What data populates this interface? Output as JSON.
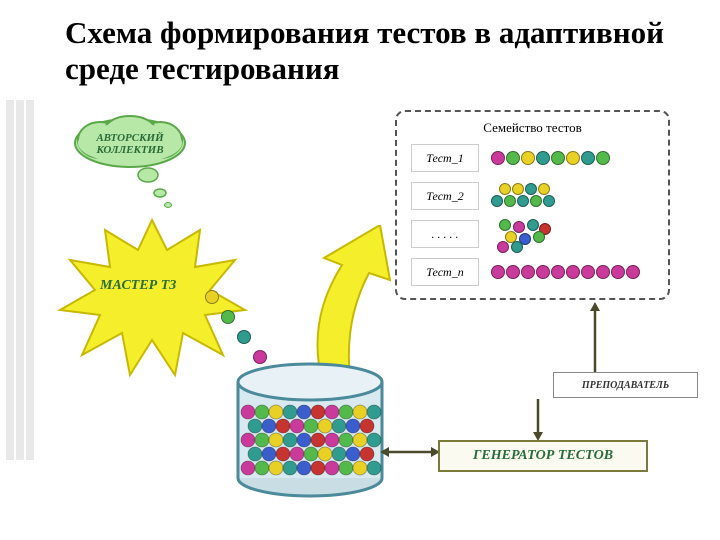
{
  "title": "Схема формирования тестов в адаптивной среде тестирования",
  "cloud_label": "АВТОРСКИЙ КОЛЛЕКТИВ",
  "star_label": "МАСТЕР ТЗ",
  "generator_label": "ГЕНЕРАТОР ТЕСТОВ",
  "teacher_label": "ПРЕПОДАВАТЕЛЬ",
  "family": {
    "title": "Семейство тестов",
    "rows": [
      {
        "label": "Тест_1",
        "balls": [
          "#c93a9a",
          "#54b94b",
          "#e8d024",
          "#2f9c8f",
          "#54b94b",
          "#e8d024",
          "#2f9c8f",
          "#54b94b"
        ]
      },
      {
        "label": "Тест_2",
        "balls_top": [
          "#e8d024",
          "#e8d024",
          "#2f9c8f",
          "#e8d024"
        ],
        "balls_bot": [
          "#2f9c8f",
          "#54b94b",
          "#2f9c8f",
          "#54b94b",
          "#2f9c8f"
        ]
      },
      {
        "label": ". . . . .",
        "cluster": [
          "#54b94b",
          "#c93a9a",
          "#2f9c8f",
          "#c7332f",
          "#e8d024",
          "#3a5ecc",
          "#54b94b",
          "#c93a9a",
          "#2f9c8f"
        ]
      },
      {
        "label": "Тест_n",
        "balls": [
          "#c93a9a",
          "#c93a9a",
          "#c93a9a",
          "#c93a9a",
          "#c93a9a",
          "#c93a9a",
          "#c93a9a",
          "#c93a9a",
          "#c93a9a",
          "#c93a9a"
        ]
      }
    ]
  },
  "colors": {
    "star_fill": "#f4ef2a",
    "star_stroke": "#c7b800",
    "cloud_fill": "#b8e8a8",
    "cloud_stroke": "#5aa84a",
    "cyl_stroke": "#4a8a9a",
    "cyl_fill": "#d8eaf0",
    "arrow_fill": "#f4ef2a",
    "green_text": "#2a6c3a",
    "small_bubble": "#b8e8a8"
  },
  "falling_balls": [
    "#e8d024",
    "#54b94b",
    "#2f9c8f",
    "#c93a9a"
  ],
  "cylinder_balls_palette": [
    "#c93a9a",
    "#54b94b",
    "#e8d024",
    "#2f9c8f",
    "#3a5ecc",
    "#c7332f"
  ]
}
